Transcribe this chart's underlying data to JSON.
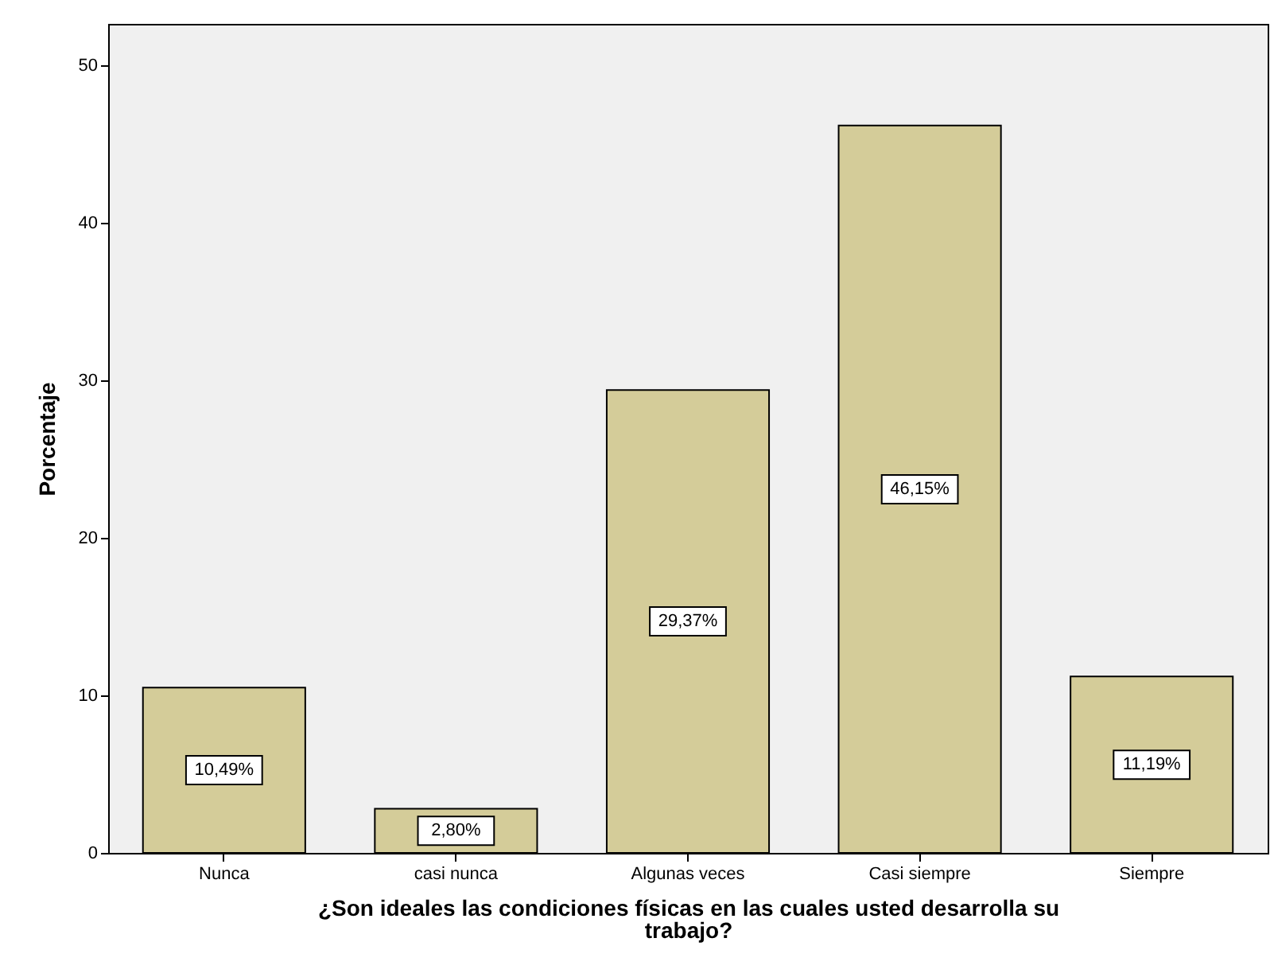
{
  "chart_data": {
    "type": "bar",
    "xlabel": "¿Son ideales las condiciones físicas en las cuales usted desarrolla su trabajo?",
    "ylabel": "Porcentaje",
    "categories": [
      "Nunca",
      "casi nunca",
      "Algunas veces",
      "Casi siempre",
      "Siempre"
    ],
    "values": [
      10.49,
      2.8,
      29.37,
      46.15,
      11.19
    ],
    "value_labels": [
      "10,49%",
      "2,80%",
      "29,37%",
      "46,15%",
      "11,19%"
    ],
    "color": "#d4cc99",
    "ylim": [
      0,
      52.6
    ],
    "yticks": [
      0,
      10,
      20,
      30,
      40,
      50
    ],
    "grid": false
  }
}
